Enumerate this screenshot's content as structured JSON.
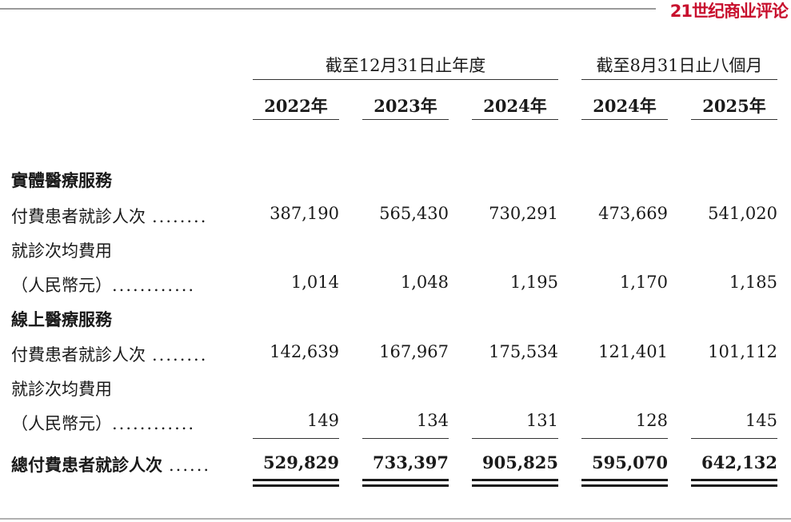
{
  "brand": "21世纪商业评论",
  "headers": {
    "group1": "截至12月31日止年度",
    "group2": "截至8月31日止八個月",
    "years": [
      "2022年",
      "2023年",
      "2024年",
      "2024年",
      "2025年"
    ]
  },
  "sections": {
    "offline": "實體醫療服務",
    "online": "線上醫療服務"
  },
  "rows": {
    "offline_visits": {
      "label": "付費患者就診人次",
      "dots": "........",
      "values": [
        "387,190",
        "565,430",
        "730,291",
        "473,669",
        "541,020"
      ]
    },
    "offline_avg_label": "就診次均費用",
    "offline_avg": {
      "label": "（人民幣元）",
      "dots": "............",
      "values": [
        "1,014",
        "1,048",
        "1,195",
        "1,170",
        "1,185"
      ]
    },
    "online_visits": {
      "label": "付費患者就診人次",
      "dots": "........",
      "values": [
        "142,639",
        "167,967",
        "175,534",
        "121,401",
        "101,112"
      ]
    },
    "online_avg_label": "就診次均費用",
    "online_avg": {
      "label": "（人民幣元）",
      "dots": "............",
      "values": [
        "149",
        "134",
        "131",
        "128",
        "145"
      ]
    },
    "total": {
      "label": "總付費患者就診人次",
      "dots": "......",
      "values": [
        "529,829",
        "733,397",
        "905,825",
        "595,070",
        "642,132"
      ]
    }
  }
}
